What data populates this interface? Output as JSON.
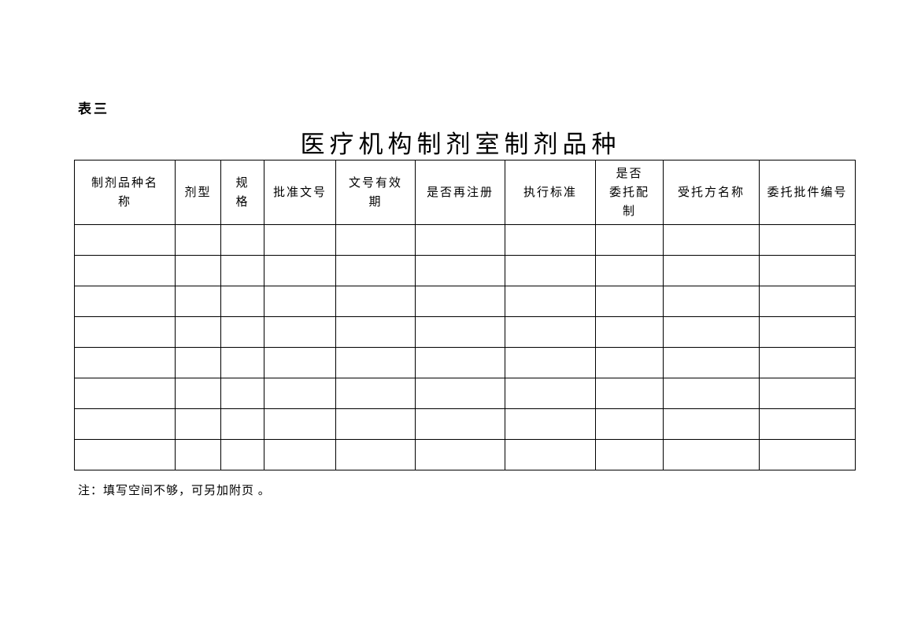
{
  "page": {
    "label": "表三",
    "title": "医疗机构制剂室制剂品种",
    "note": "注：填写空间不够，可另加附页 。"
  },
  "table": {
    "row_count": 8,
    "columns": [
      {
        "id": "preparation-name",
        "label": "制剂品种名\n称"
      },
      {
        "id": "dosage-form",
        "label": "剂型"
      },
      {
        "id": "specification",
        "label": "规\n格"
      },
      {
        "id": "approval-number",
        "label": "批准文号"
      },
      {
        "id": "number-validity-period",
        "label": "文号有效\n期"
      },
      {
        "id": "re-registration",
        "label": "是否再注册"
      },
      {
        "id": "execution-standard",
        "label": "执行标准"
      },
      {
        "id": "entrusted-preparation",
        "label": "是否\n委托配\n制"
      },
      {
        "id": "trustee-name",
        "label": "受托方名称"
      },
      {
        "id": "entrustment-approval-number",
        "label": "委托批件编号"
      }
    ]
  }
}
